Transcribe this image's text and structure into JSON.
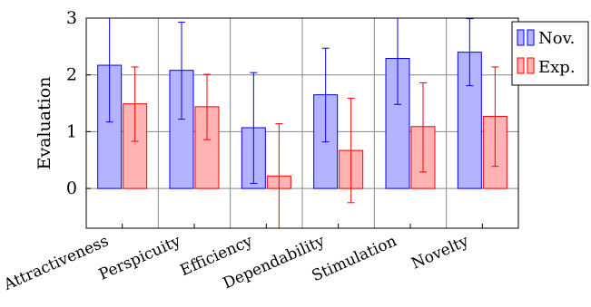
{
  "chart_data": {
    "type": "bar",
    "ylabel": "Evaluation",
    "ylim": [
      -0.7,
      3
    ],
    "yticks": [
      "0",
      "1",
      "2",
      "3"
    ],
    "categories": [
      "Attractiveness",
      "Perspicuity",
      "Efficiency",
      "Dependability",
      "Stimulation",
      "Novelty"
    ],
    "series": [
      {
        "name": "Nov.",
        "values": [
          2.17,
          2.08,
          1.07,
          1.65,
          2.29,
          2.4
        ],
        "error_low": [
          1.17,
          1.22,
          0.09,
          0.82,
          1.48,
          1.81
        ],
        "error_high": [
          3.0,
          2.93,
          2.04,
          2.47,
          3.0,
          2.99
        ],
        "fill": "#b3b3ff",
        "stroke": "#0000ff"
      },
      {
        "name": "Exp.",
        "values": [
          1.49,
          1.44,
          0.22,
          0.67,
          1.09,
          1.27
        ],
        "error_low": [
          0.83,
          0.86,
          -0.7,
          -0.25,
          0.29,
          0.39
        ],
        "error_high": [
          2.14,
          2.01,
          1.14,
          1.59,
          1.86,
          2.14
        ],
        "fill": "#ffb3b3",
        "stroke": "#ff0000"
      }
    ],
    "grid": true,
    "legend_position": "top-right"
  }
}
